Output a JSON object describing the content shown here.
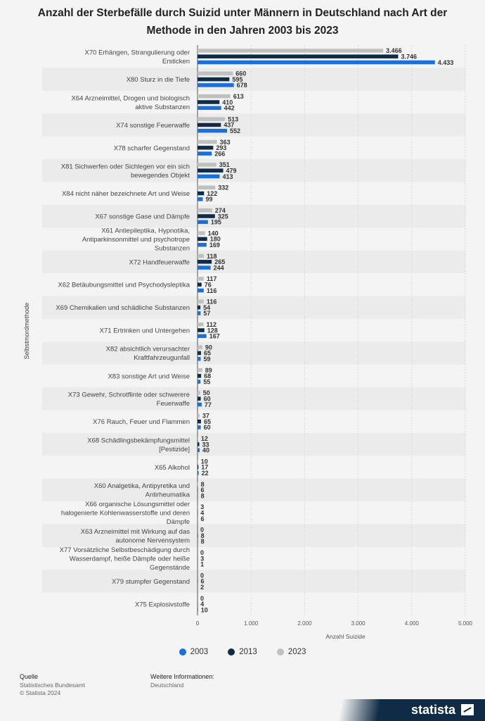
{
  "chart_data": {
    "type": "bar",
    "orientation": "horizontal",
    "title": "Anzahl der Sterbefälle durch Suizid unter Männern in Deutschland nach Art der Methode in den Jahren 2003 bis 2023",
    "xlabel": "Anzahl Suizide",
    "ylabel": "Selbstmordmethode",
    "xlim": [
      0,
      5000
    ],
    "x_ticks": [
      "0",
      "1.000",
      "2.000",
      "3.000",
      "4.000",
      "5.000"
    ],
    "grid": true,
    "legend_position": "bottom",
    "categories": [
      [
        "X70 Erhängen, Strangulierung oder",
        "Ersticken"
      ],
      [
        "X80 Sturz in die Tiefe"
      ],
      [
        "X64 Arzneimittel, Drogen und biologisch",
        "aktive Substanzen"
      ],
      [
        "X74 sonstige Feuerwaffe"
      ],
      [
        "X78 scharfer Gegenstand"
      ],
      [
        "X81 Sichwerfen oder Sichlegen vor ein sich",
        "bewegendes Objekt"
      ],
      [
        "X84 nicht näher bezeichnete Art und Weise"
      ],
      [
        "X67 sonstige Gase und Dämpfe"
      ],
      [
        "X61 Antiepileptika, Hypnotika,",
        "Antiparkinsonmittel und psychotrope",
        "Substanzen"
      ],
      [
        "X72 Handfeuerwaffe"
      ],
      [
        "X62 Betäubungsmittel und Psychodysleptika"
      ],
      [
        "X69 Chemikalien und schädliche Substanzen"
      ],
      [
        "X71 Ertrinken und Untergehen"
      ],
      [
        "X82 absichtlich verursachter",
        "Kraftfahrzeugunfall"
      ],
      [
        "X83 sonstige Art und Weise"
      ],
      [
        "X73 Gewehr, Schrotflinte oder schwerere",
        "Feuerwaffe"
      ],
      [
        "X76 Rauch, Feuer und Flammen"
      ],
      [
        "X68 Schädlingsbekämpfungsmittel",
        "[Pestizide]"
      ],
      [
        "X65 Alkohol"
      ],
      [
        "X60 Analgetika, Antipyretika und",
        "Antirheumatika"
      ],
      [
        "X66 organische Lösungsmittel oder",
        "halogenierte Kohlenwasserstoffe und deren",
        "Dämpfe"
      ],
      [
        "X63 Arzneimittel mit Wirkung auf das",
        "autonome Nervensystem"
      ],
      [
        "X77 Vorsätzliche Selbstbeschädigung durch",
        "Wasserdampf, heiße Dämpfe oder heiße",
        "Gegenstände"
      ],
      [
        "X79 stumpfer Gegenstand"
      ],
      [
        "X75 Explosivstoffe"
      ]
    ],
    "series": [
      {
        "name": "2023",
        "color": "#c0c0c0",
        "values": [
          3466,
          660,
          613,
          513,
          363,
          351,
          332,
          274,
          140,
          118,
          117,
          116,
          112,
          90,
          89,
          50,
          37,
          12,
          10,
          8,
          3,
          0,
          0,
          0,
          0
        ],
        "labels": [
          "3.466",
          "660",
          "613",
          "513",
          "363",
          "351",
          "332",
          "274",
          "140",
          "118",
          "117",
          "116",
          "112",
          "90",
          "89",
          "50",
          "37",
          "12",
          "10",
          "8",
          "3",
          "0",
          "0",
          "0",
          "0"
        ]
      },
      {
        "name": "2013",
        "color": "#0f2b46",
        "values": [
          3746,
          595,
          410,
          437,
          293,
          479,
          122,
          325,
          180,
          265,
          76,
          54,
          128,
          65,
          68,
          60,
          65,
          33,
          17,
          6,
          4,
          8,
          3,
          6,
          4
        ],
        "labels": [
          "3.746",
          "595",
          "410",
          "437",
          "293",
          "479",
          "122",
          "325",
          "180",
          "265",
          "76",
          "54",
          "128",
          "65",
          "68",
          "60",
          "65",
          "33",
          "17",
          "6",
          "4",
          "8",
          "3",
          "6",
          "4"
        ]
      },
      {
        "name": "2003",
        "color": "#1a6fd8",
        "values": [
          4433,
          678,
          442,
          552,
          266,
          413,
          99,
          195,
          169,
          244,
          116,
          57,
          167,
          59,
          55,
          77,
          60,
          40,
          22,
          8,
          6,
          8,
          1,
          2,
          10
        ],
        "labels": [
          "4.433",
          "678",
          "442",
          "552",
          "266",
          "413",
          "99",
          "195",
          "169",
          "244",
          "116",
          "57",
          "167",
          "59",
          "55",
          "77",
          "60",
          "40",
          "22",
          "8",
          "6",
          "8",
          "1",
          "2",
          "10"
        ]
      }
    ]
  },
  "legend": [
    {
      "label": "2003",
      "color": "#1a6fd8"
    },
    {
      "label": "2013",
      "color": "#0f2b46"
    },
    {
      "label": "2023",
      "color": "#c0c0c0"
    }
  ],
  "footer": {
    "source_head": "Quelle",
    "source_line1": "Statistisches Bundesamt",
    "source_line2": "© Statista 2024",
    "info_head": "Weitere Informationen:",
    "info_line1": "Deutschland"
  },
  "brand": "statista"
}
